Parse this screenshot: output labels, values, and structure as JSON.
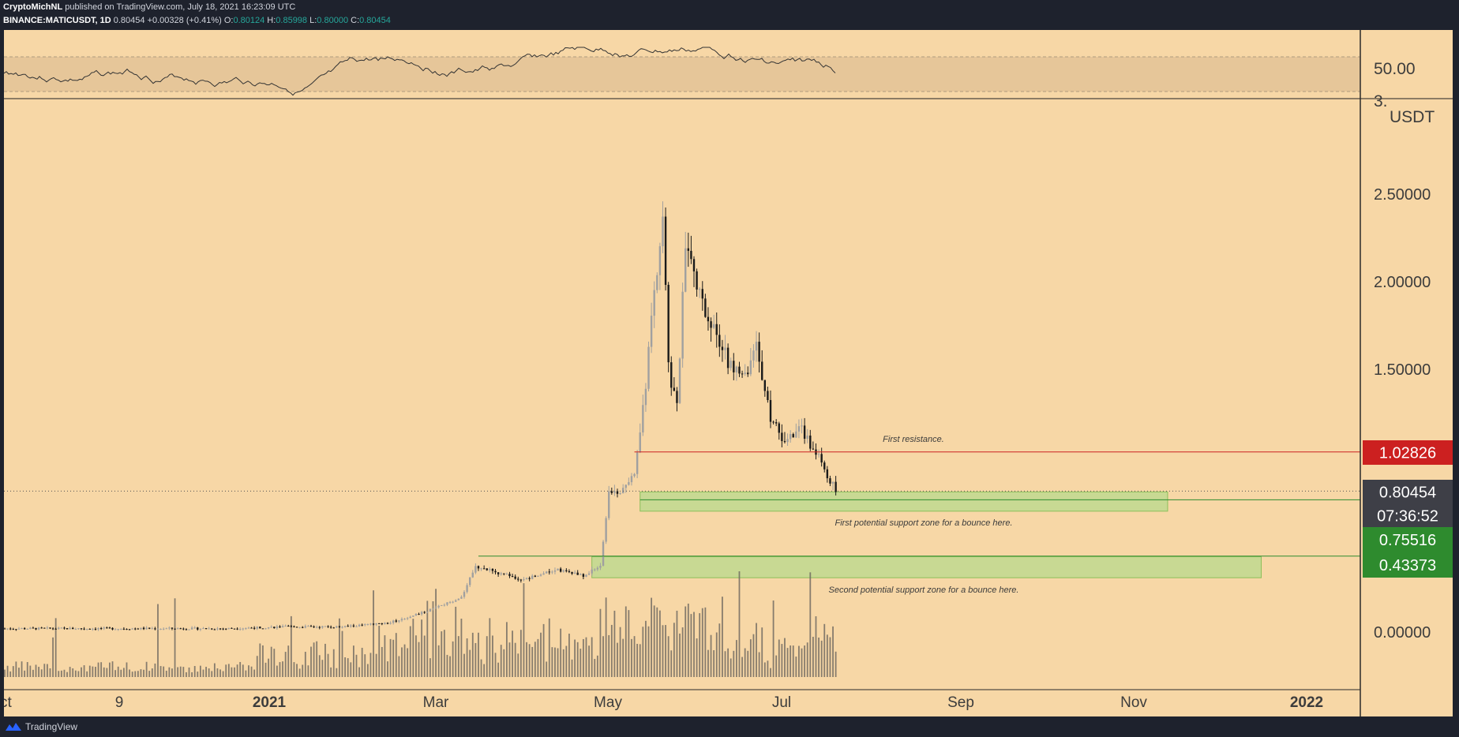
{
  "header": {
    "author": "CryptoMichNL",
    "published": "published on TradingView.com, July 18, 2021 16:23:09 UTC",
    "symbol": "BINANCE:MATICUSDT, 1D",
    "last": "0.80454",
    "change": "+0.00328 (+0.41%)",
    "o_label": "O:",
    "o": "0.80124",
    "h_label": "H:",
    "h": "0.85998",
    "l_label": "L:",
    "l": "0.80000",
    "c_label": "C:",
    "c": "0.80454"
  },
  "footer": {
    "brand": "TradingView"
  },
  "colors": {
    "background": "#f7d7a6",
    "frame": "#1e222d",
    "resistance": "#cc2020",
    "support": "#2e8b2e",
    "zone_fill": "#b8d98c",
    "price_tag": "#3e3f47"
  },
  "chart_data": {
    "type": "candlestick",
    "x_ticks": [
      "Oct",
      "9",
      "2021",
      "Mar",
      "May",
      "Jul",
      "Sep",
      "Nov",
      "2022"
    ],
    "y_ticks": [
      "0.00000",
      "1.50000",
      "2.00000",
      "2.50000"
    ],
    "y_unit": "USDT",
    "y_range": [
      -0.25,
      3.05
    ],
    "last_price": "0.80454",
    "countdown": "07:36:52",
    "levels": [
      {
        "label": "1.02826",
        "value": 1.02826,
        "kind": "resistance"
      },
      {
        "label": "0.75516",
        "value": 0.75516,
        "kind": "support"
      },
      {
        "label": "0.43373",
        "value": 0.43373,
        "kind": "support"
      }
    ],
    "annotations": [
      "First resistance.",
      "First potential support zone for a bounce here.",
      "Second potential support zone for a bounce here."
    ],
    "zones": [
      {
        "name": "first-support-zone",
        "low": 0.69,
        "high": 0.8,
        "from": "2021-05-10",
        "to": "2021-11-12"
      },
      {
        "name": "second-support-zone",
        "low": 0.31,
        "high": 0.43,
        "from": "2021-04-23",
        "to": "2021-12-15"
      }
    ],
    "oscillator": {
      "label": "50.00",
      "level": 50
    },
    "price_path": [
      [
        "2020-09-25",
        0.02
      ],
      [
        "2020-12-15",
        0.02
      ],
      [
        "2021-01-05",
        0.03
      ],
      [
        "2021-01-25",
        0.03
      ],
      [
        "2021-02-10",
        0.05
      ],
      [
        "2021-02-20",
        0.1
      ],
      [
        "2021-03-01",
        0.15
      ],
      [
        "2021-03-08",
        0.2
      ],
      [
        "2021-03-13",
        0.38
      ],
      [
        "2021-03-20",
        0.34
      ],
      [
        "2021-03-30",
        0.3
      ],
      [
        "2021-04-10",
        0.36
      ],
      [
        "2021-04-20",
        0.32
      ],
      [
        "2021-04-26",
        0.38
      ],
      [
        "2021-04-29",
        0.8
      ],
      [
        "2021-05-04",
        0.8
      ],
      [
        "2021-05-08",
        0.9
      ],
      [
        "2021-05-12",
        1.4
      ],
      [
        "2021-05-15",
        1.95
      ],
      [
        "2021-05-18",
        2.4
      ],
      [
        "2021-05-20",
        1.5
      ],
      [
        "2021-05-23",
        1.3
      ],
      [
        "2021-05-26",
        2.2
      ],
      [
        "2021-06-01",
        1.85
      ],
      [
        "2021-06-10",
        1.55
      ],
      [
        "2021-06-16",
        1.45
      ],
      [
        "2021-06-20",
        1.65
      ],
      [
        "2021-06-25",
        1.2
      ],
      [
        "2021-06-30",
        1.1
      ],
      [
        "2021-07-06",
        1.15
      ],
      [
        "2021-07-12",
        1.0
      ],
      [
        "2021-07-18",
        0.8
      ]
    ]
  }
}
